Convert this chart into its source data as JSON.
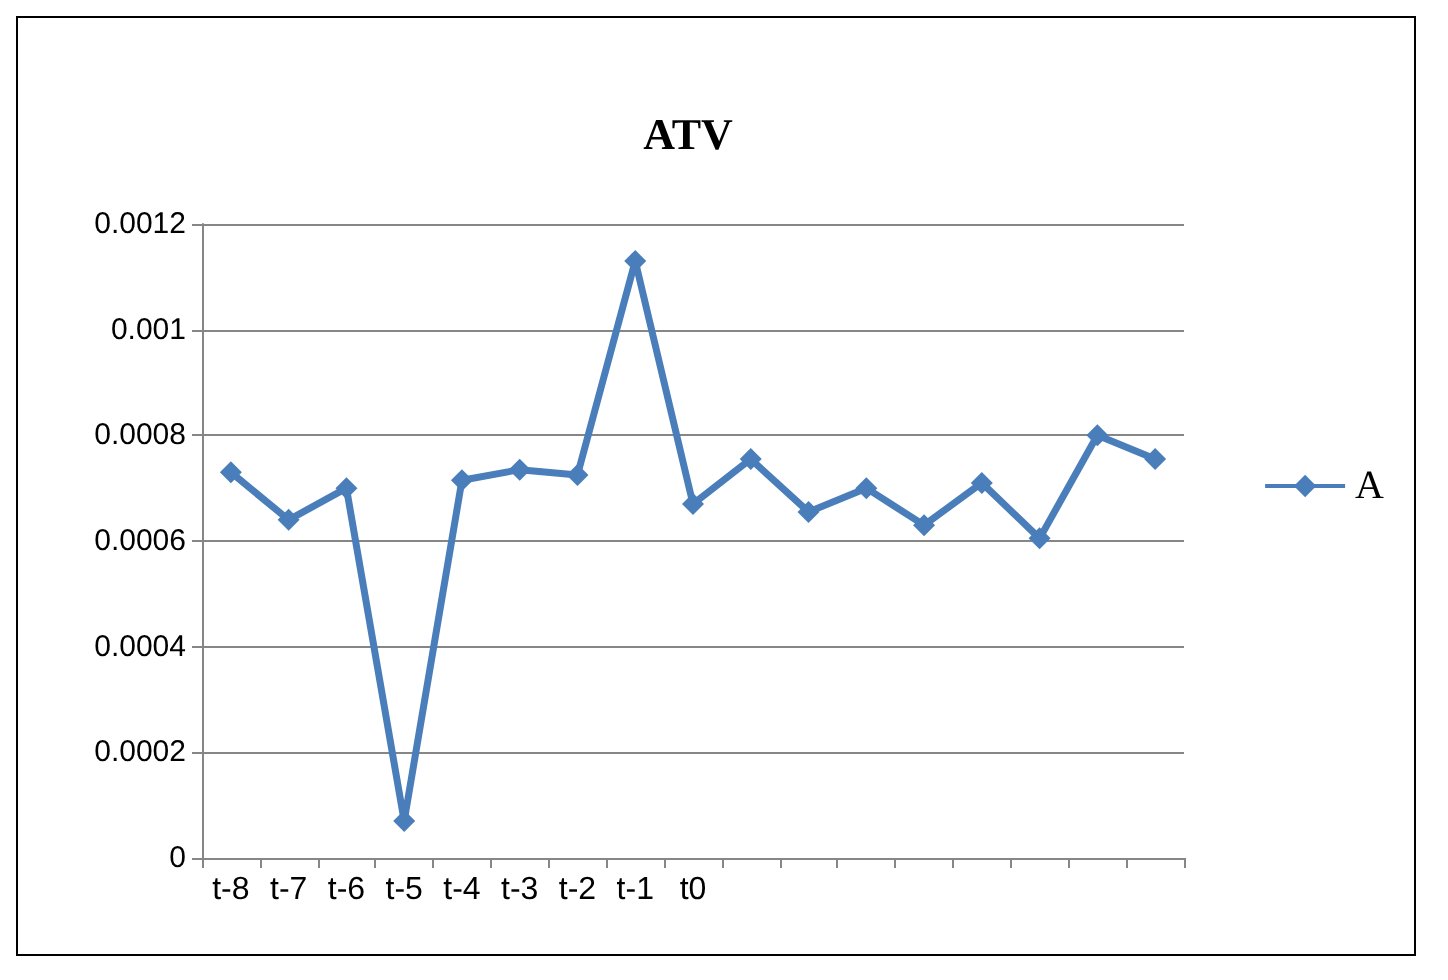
{
  "chart_data": {
    "type": "line",
    "title": "ATV",
    "categories": [
      "t-8",
      "t-7",
      "t-6",
      "t-5",
      "t-4",
      "t-3",
      "t-2",
      "t-1",
      "t0",
      null,
      null,
      null,
      null,
      null,
      null,
      null,
      null
    ],
    "series": [
      {
        "name": "A",
        "color": "#4a7ebb",
        "values": [
          0.00073,
          0.00064,
          0.0007,
          7e-05,
          0.000715,
          0.000735,
          0.000725,
          0.00113,
          0.00067,
          0.000755,
          0.000655,
          0.0007,
          0.00063,
          0.00071,
          0.000605,
          0.0008,
          0.000755
        ]
      }
    ],
    "ylim": [
      0,
      0.0012
    ],
    "yticks": [
      0,
      0.0002,
      0.0004,
      0.0006,
      0.0008,
      0.001,
      0.0012
    ],
    "grid": "y",
    "legend": "right",
    "marker": "diamond",
    "line_style": "solid"
  }
}
